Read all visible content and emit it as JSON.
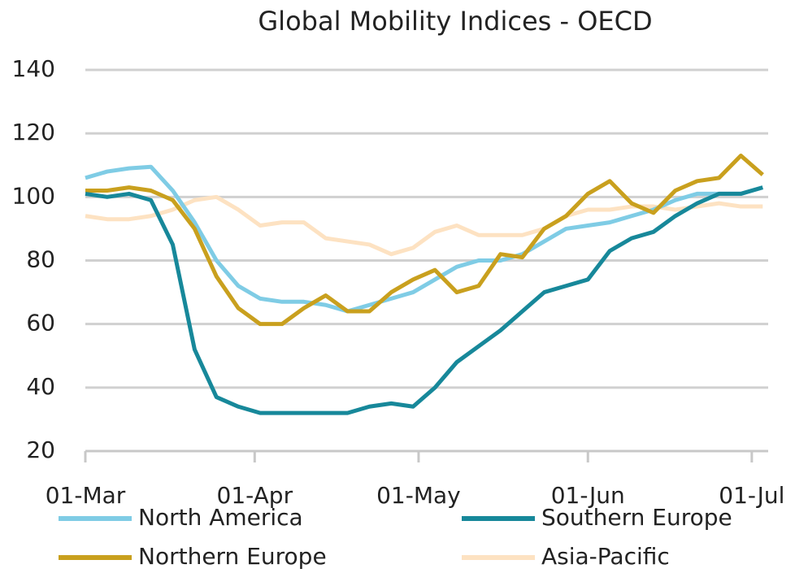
{
  "chart_data": {
    "type": "line",
    "title": "Global Mobility Indices - OECD",
    "x": [
      0,
      4,
      8,
      12,
      16,
      20,
      24,
      28,
      32,
      36,
      40,
      44,
      48,
      52,
      56,
      60,
      64,
      68,
      72,
      76,
      80,
      84,
      88,
      92,
      96,
      100,
      104,
      108,
      112,
      116,
      120,
      124
    ],
    "xlim": [
      0,
      125
    ],
    "xticks": [
      {
        "value": 0,
        "label": "01-Mar"
      },
      {
        "value": 31,
        "label": "01-Apr"
      },
      {
        "value": 61,
        "label": "01-May"
      },
      {
        "value": 92,
        "label": "01-Jun"
      },
      {
        "value": 122,
        "label": "01-Jul"
      }
    ],
    "ylim": [
      20,
      140
    ],
    "yticks": [
      20,
      40,
      60,
      80,
      100,
      120,
      140
    ],
    "grid": true,
    "series": [
      {
        "name": "North America",
        "color": "#7fcce5",
        "values": [
          106,
          108,
          109,
          109.5,
          102,
          92,
          80,
          72,
          68,
          67,
          67,
          66,
          64,
          66,
          68,
          70,
          74,
          78,
          80,
          80,
          82,
          86,
          90,
          91,
          92,
          94,
          96,
          99,
          101,
          101,
          101,
          103
        ]
      },
      {
        "name": "Southern Europe",
        "color": "#17889a",
        "values": [
          101,
          100,
          101,
          99,
          85,
          52,
          37,
          34,
          32,
          32,
          32,
          32,
          32,
          34,
          35,
          34,
          40,
          48,
          53,
          58,
          64,
          70,
          72,
          74,
          83,
          87,
          89,
          94,
          98,
          101,
          101,
          103
        ]
      },
      {
        "name": "Northern Europe",
        "color": "#c9a01e",
        "values": [
          102,
          102,
          103,
          102,
          99,
          90,
          75,
          65,
          60,
          60,
          65,
          69,
          64,
          64,
          70,
          74,
          77,
          70,
          72,
          82,
          81,
          90,
          94,
          101,
          105,
          98,
          95,
          102,
          105,
          106,
          113,
          107
        ]
      },
      {
        "name": "Asia-Pacific",
        "color": "#fde2c2",
        "values": [
          94,
          93,
          93,
          94,
          96,
          99,
          100,
          96,
          91,
          92,
          92,
          87,
          86,
          85,
          82,
          84,
          89,
          91,
          88,
          88,
          88,
          90,
          94,
          96,
          96,
          97,
          97,
          96,
          97,
          98,
          97,
          97
        ]
      }
    ]
  }
}
